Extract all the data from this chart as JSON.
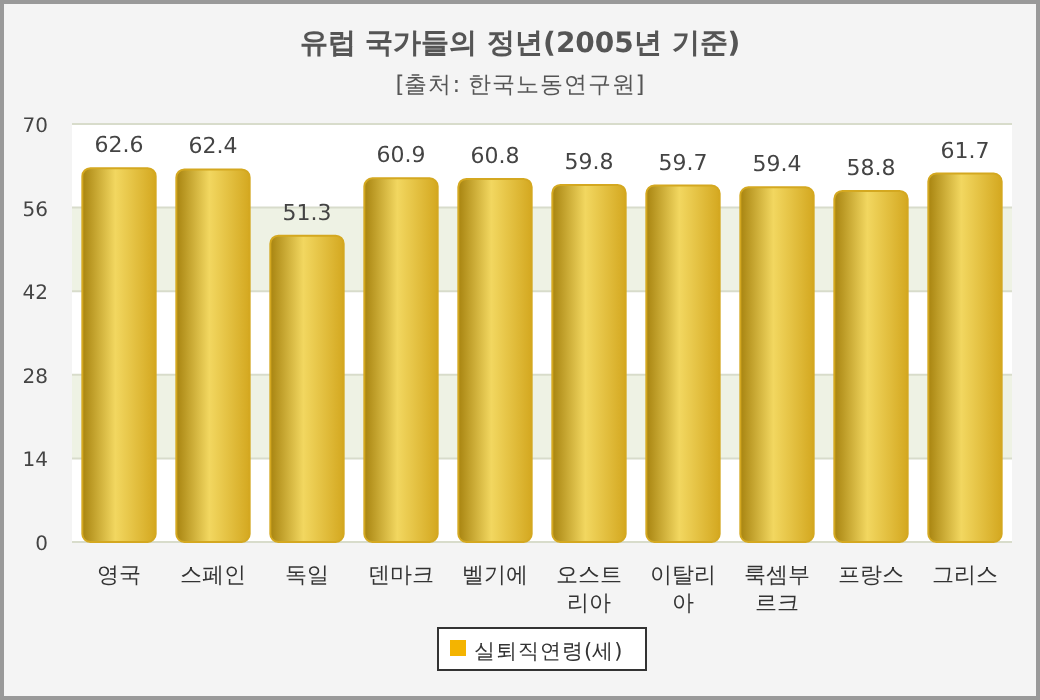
{
  "chart_data": {
    "type": "bar",
    "title": "유럽 국가들의 정년(2005년 기준)",
    "subtitle": "[출처: 한국노동연구원]",
    "categories": [
      "영국",
      "스페인",
      "독일",
      "덴마크",
      "벨기에",
      "오스트리아",
      "이탈리아",
      "룩셈부르크",
      "프랑스",
      "그리스"
    ],
    "series": [
      {
        "name": "실퇴직연령(세)",
        "color": "#d4a820",
        "values": [
          62.6,
          62.4,
          51.3,
          60.9,
          60.8,
          59.8,
          59.7,
          59.4,
          58.8,
          61.7
        ]
      }
    ],
    "ylim": [
      0,
      70
    ],
    "yticks": [
      0,
      14,
      28,
      42,
      56,
      70
    ],
    "grid": "y",
    "legend": "bottom",
    "data_labels": true
  }
}
